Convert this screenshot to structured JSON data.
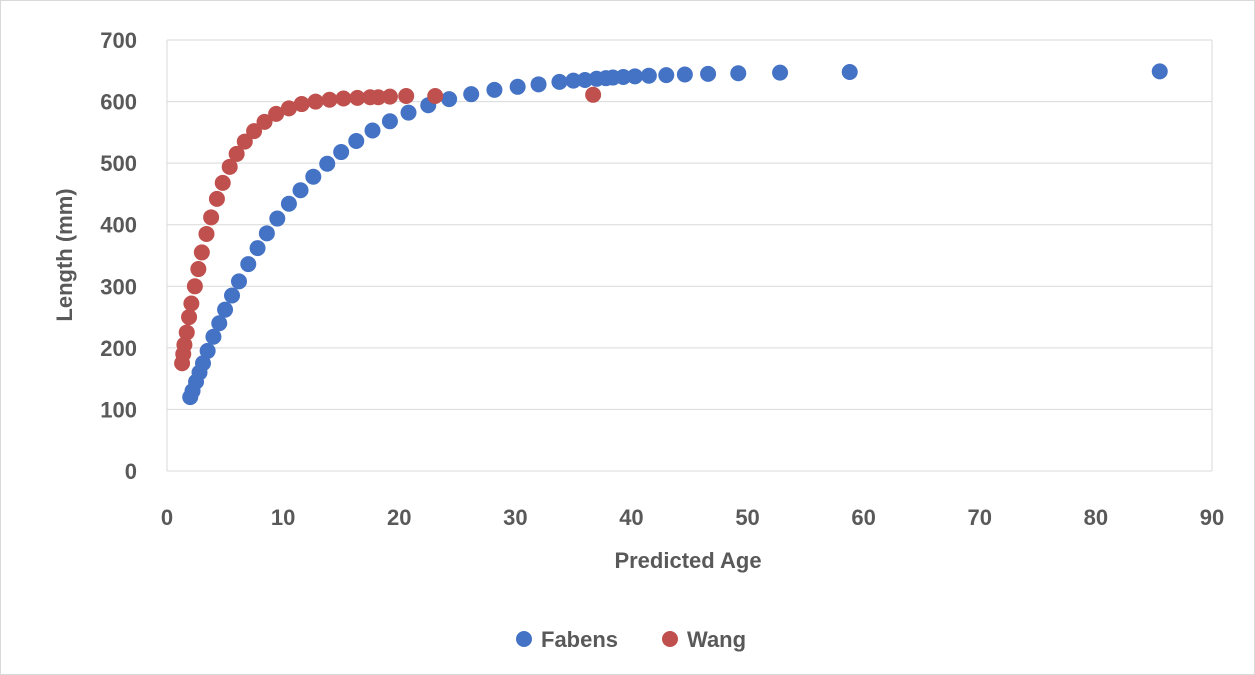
{
  "chart_data": {
    "type": "scatter",
    "title": "",
    "xlabel": "Predicted Age",
    "ylabel": "Length (mm)",
    "xlim": [
      0,
      90
    ],
    "ylim": [
      0,
      700
    ],
    "x_ticks": [
      "0",
      "10",
      "20",
      "30",
      "40",
      "50",
      "60",
      "70",
      "80",
      "90"
    ],
    "y_ticks": [
      "0",
      "100",
      "200",
      "300",
      "400",
      "500",
      "600",
      "700"
    ],
    "grid": "horizontal",
    "legend_position": "bottom",
    "series": [
      {
        "name": "Fabens",
        "color": "#4472C4",
        "points": [
          [
            2.0,
            120
          ],
          [
            2.2,
            130
          ],
          [
            2.5,
            145
          ],
          [
            2.8,
            160
          ],
          [
            3.1,
            175
          ],
          [
            3.5,
            195
          ],
          [
            4.0,
            218
          ],
          [
            4.5,
            240
          ],
          [
            5.0,
            262
          ],
          [
            5.6,
            285
          ],
          [
            6.2,
            308
          ],
          [
            7.0,
            336
          ],
          [
            7.8,
            362
          ],
          [
            8.6,
            386
          ],
          [
            9.5,
            410
          ],
          [
            10.5,
            434
          ],
          [
            11.5,
            456
          ],
          [
            12.6,
            478
          ],
          [
            13.8,
            499
          ],
          [
            15.0,
            518
          ],
          [
            16.3,
            536
          ],
          [
            17.7,
            553
          ],
          [
            19.2,
            568
          ],
          [
            20.8,
            582
          ],
          [
            22.5,
            594
          ],
          [
            24.3,
            604
          ],
          [
            26.2,
            612
          ],
          [
            28.2,
            619
          ],
          [
            30.2,
            624
          ],
          [
            32.0,
            628
          ],
          [
            33.8,
            632
          ],
          [
            35.0,
            634
          ],
          [
            36.0,
            635
          ],
          [
            37.0,
            637
          ],
          [
            37.8,
            638
          ],
          [
            38.4,
            639
          ],
          [
            39.3,
            640
          ],
          [
            40.3,
            641
          ],
          [
            41.5,
            642
          ],
          [
            43.0,
            643
          ],
          [
            44.6,
            644
          ],
          [
            46.6,
            645
          ],
          [
            49.2,
            646
          ],
          [
            52.8,
            647
          ],
          [
            58.8,
            648
          ],
          [
            85.5,
            649
          ]
        ]
      },
      {
        "name": "Wang",
        "color": "#C0504D",
        "points": [
          [
            1.3,
            175
          ],
          [
            1.4,
            190
          ],
          [
            1.5,
            205
          ],
          [
            1.7,
            225
          ],
          [
            1.9,
            250
          ],
          [
            2.1,
            272
          ],
          [
            2.4,
            300
          ],
          [
            2.7,
            328
          ],
          [
            3.0,
            355
          ],
          [
            3.4,
            385
          ],
          [
            3.8,
            412
          ],
          [
            4.3,
            442
          ],
          [
            4.8,
            468
          ],
          [
            5.4,
            494
          ],
          [
            6.0,
            515
          ],
          [
            6.7,
            535
          ],
          [
            7.5,
            552
          ],
          [
            8.4,
            567
          ],
          [
            9.4,
            580
          ],
          [
            10.5,
            589
          ],
          [
            11.6,
            596
          ],
          [
            12.8,
            600
          ],
          [
            14.0,
            603
          ],
          [
            15.2,
            605
          ],
          [
            16.4,
            606
          ],
          [
            17.5,
            607
          ],
          [
            18.2,
            607
          ],
          [
            19.2,
            608
          ],
          [
            20.6,
            609
          ],
          [
            23.1,
            609
          ],
          [
            36.7,
            611
          ]
        ]
      }
    ]
  }
}
